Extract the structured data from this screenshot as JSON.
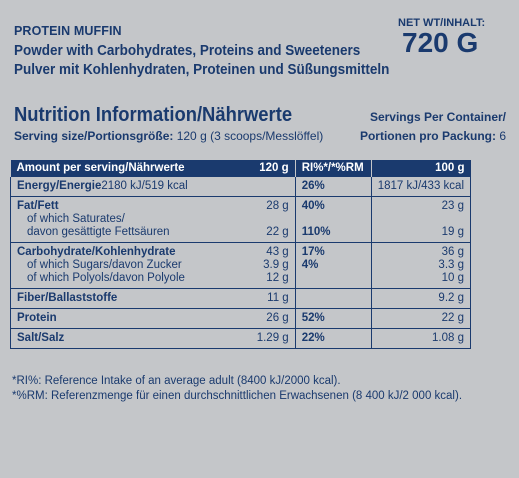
{
  "header": {
    "product_name": "PROTEIN MUFFIN",
    "description_en": "Powder with Carbohydrates, Proteins and Sweeteners",
    "description_de": "Pulver mit Kohlenhydraten, Proteinen und Süßungsmitteln",
    "net_weight_label": "NET WT/INHALT:",
    "net_weight_value": "720 G"
  },
  "nutrition": {
    "heading": "Nutrition Information/Nährwerte",
    "serving_size_label": "Serving size/Portionsgröße:",
    "serving_size_value": " 120 g (3 scoops/Messlöffel)",
    "servings_per_container_label": "Servings Per Container/",
    "portionen_label": "Portionen pro Packung:",
    "portionen_value": " 6"
  },
  "table": {
    "headers": {
      "amount": "Amount per serving/Nährwerte",
      "per_serving": "120 g",
      "ri": "RI%*/*%RM",
      "per_100": "100 g"
    },
    "groups": [
      {
        "rows": [
          {
            "label": "Energy/Energie",
            "bold": true,
            "serving": "2180 kJ/519 kcal",
            "ri": "26%",
            "per100": "1817 kJ/433 kcal",
            "inline_value": true
          }
        ]
      },
      {
        "rows": [
          {
            "label": "Fat/Fett",
            "bold": true,
            "serving": "28 g",
            "ri": "40%",
            "per100": "23 g"
          },
          {
            "label": "of which Saturates/",
            "bold": false,
            "serving": "",
            "ri": "",
            "per100": ""
          },
          {
            "label": "davon gesättigte Fettsäuren",
            "bold": false,
            "serving": "22 g",
            "ri": "110%",
            "per100": "19 g"
          }
        ]
      },
      {
        "rows": [
          {
            "label": "Carbohydrate/Kohlenhydrate",
            "bold": true,
            "serving": "43 g",
            "ri": "17%",
            "per100": "36 g"
          },
          {
            "label": "of which Sugars/davon Zucker",
            "bold": false,
            "serving": "3.9 g",
            "ri": "4%",
            "per100": "3.3 g"
          },
          {
            "label": "of which Polyols/davon Polyole",
            "bold": false,
            "serving": "12 g",
            "ri": "",
            "per100": "10 g"
          }
        ]
      },
      {
        "rows": [
          {
            "label": "Fiber/Ballaststoffe",
            "bold": true,
            "serving": "11 g",
            "ri": "",
            "per100": "9.2 g"
          }
        ]
      },
      {
        "rows": [
          {
            "label": "Protein",
            "bold": true,
            "serving": "26 g",
            "ri": "52%",
            "per100": "22 g"
          }
        ]
      },
      {
        "rows": [
          {
            "label": "Salt/Salz",
            "bold": true,
            "serving": "1.29 g",
            "ri": "22%",
            "per100": "1.08 g"
          }
        ]
      }
    ]
  },
  "footnotes": {
    "ri": "*RI%: Reference Intake of an average adult (8400 kJ/2000 kcal).",
    "rm": "*%RM: Referenzmenge für einen durchschnittlichen Erwachsenen (8 400 kJ/2 000 kcal)."
  },
  "colors": {
    "text": "#1a3a6e",
    "background": "#c4c6c9",
    "header_fill": "#1a3a6e"
  }
}
